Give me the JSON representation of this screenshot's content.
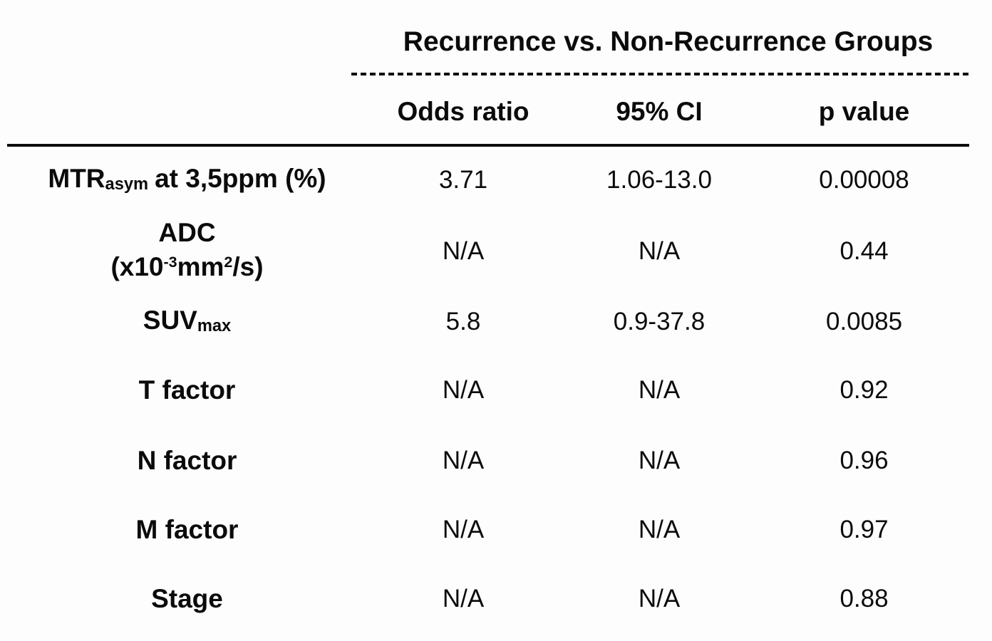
{
  "page": {
    "background": "#fdfdfd",
    "text_color": "#0b0b0b"
  },
  "table": {
    "group_header": "Recurrence vs. Non-Recurrence Groups",
    "columns": {
      "odds_ratio": "Odds ratio",
      "ci": "95% CI",
      "p_value": "p value"
    },
    "rows": [
      {
        "label": {
          "base": "MTR",
          "sub": "asym",
          "rest": "at 3,5ppm (%)"
        },
        "odds_ratio": "3.71",
        "ci": "1.06-13.0",
        "p_value": "0.00008"
      },
      {
        "label": {
          "line1": "ADC",
          "line2_pre": "(x10",
          "line2_sup1": "-3",
          "line2_mid": "mm",
          "line2_sup2": "2",
          "line2_post": "/s)"
        },
        "odds_ratio": "N/A",
        "ci": "N/A",
        "p_value": "0.44"
      },
      {
        "label": {
          "base": "SUV",
          "sub": "max"
        },
        "odds_ratio": "5.8",
        "ci": "0.9-37.8",
        "p_value": "0.0085"
      },
      {
        "label": {
          "text": "T factor"
        },
        "odds_ratio": "N/A",
        "ci": "N/A",
        "p_value": "0.92"
      },
      {
        "label": {
          "text": "N factor"
        },
        "odds_ratio": "N/A",
        "ci": "N/A",
        "p_value": "0.96"
      },
      {
        "label": {
          "text": "M factor"
        },
        "odds_ratio": "N/A",
        "ci": "N/A",
        "p_value": "0.97"
      },
      {
        "label": {
          "text": "Stage"
        },
        "odds_ratio": "N/A",
        "ci": "N/A",
        "p_value": "0.88"
      }
    ]
  }
}
